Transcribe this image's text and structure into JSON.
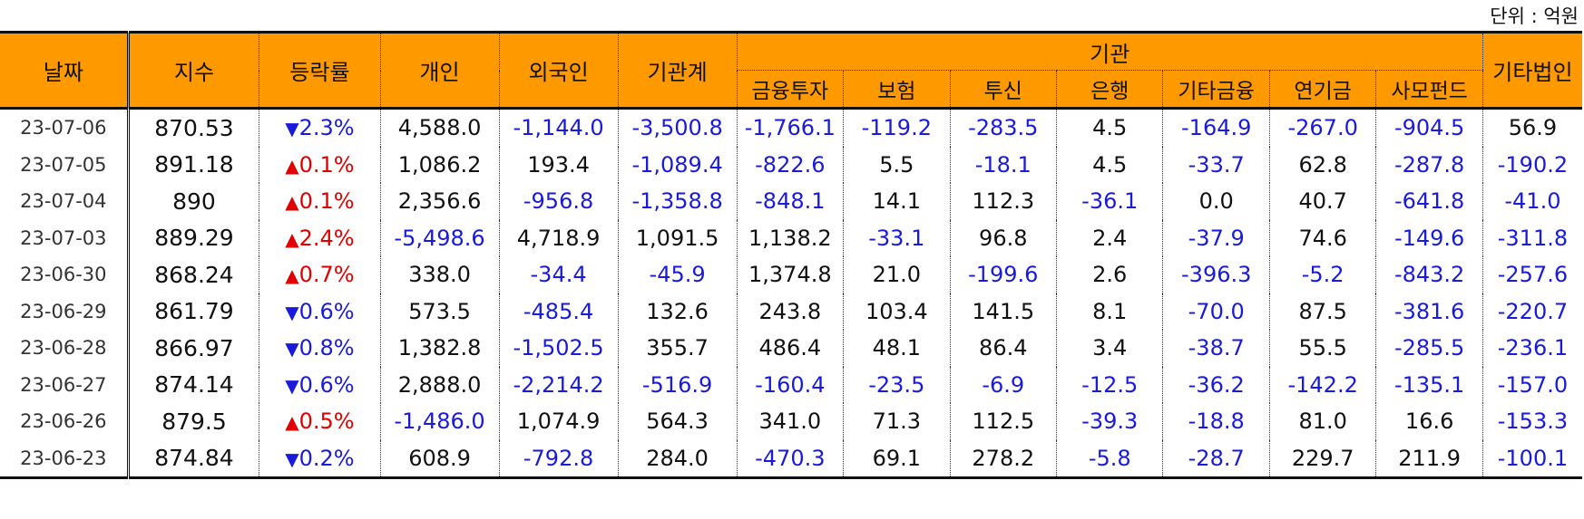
{
  "unit_label": "단위 : 억원",
  "headers": {
    "date": "날짜",
    "index": "지수",
    "change": "등락률",
    "individual": "개인",
    "foreign": "외국인",
    "inst_total": "기관계",
    "institution": "기관",
    "financial_invest": "금융투자",
    "insurance": "보험",
    "trust": "투신",
    "bank": "은행",
    "other_finance": "기타금융",
    "pension": "연기금",
    "private_fund": "사모펀드",
    "other_corp": "기타법인"
  },
  "colors": {
    "header_bg": "#ff9900",
    "negative": "#1a1adb",
    "up": "#e00000",
    "down": "#1a1adb"
  },
  "rows": [
    {
      "date": "23-07-06",
      "index": "870.53",
      "dir": "down",
      "chg": "2.3%",
      "cells": [
        "4,588.0",
        "-1,144.0",
        "-3,500.8",
        "-1,766.1",
        "-119.2",
        "-283.5",
        "4.5",
        "-164.9",
        "-267.0",
        "-904.5",
        "56.9"
      ]
    },
    {
      "date": "23-07-05",
      "index": "891.18",
      "dir": "up",
      "chg": "0.1%",
      "cells": [
        "1,086.2",
        "193.4",
        "-1,089.4",
        "-822.6",
        "5.5",
        "-18.1",
        "4.5",
        "-33.7",
        "62.8",
        "-287.8",
        "-190.2"
      ]
    },
    {
      "date": "23-07-04",
      "index": "890",
      "dir": "up",
      "chg": "0.1%",
      "cells": [
        "2,356.6",
        "-956.8",
        "-1,358.8",
        "-848.1",
        "14.1",
        "112.3",
        "-36.1",
        "0.0",
        "40.7",
        "-641.8",
        "-41.0"
      ]
    },
    {
      "date": "23-07-03",
      "index": "889.29",
      "dir": "up",
      "chg": "2.4%",
      "cells": [
        "-5,498.6",
        "4,718.9",
        "1,091.5",
        "1,138.2",
        "-33.1",
        "96.8",
        "2.4",
        "-37.9",
        "74.6",
        "-149.6",
        "-311.8"
      ]
    },
    {
      "date": "23-06-30",
      "index": "868.24",
      "dir": "up",
      "chg": "0.7%",
      "cells": [
        "338.0",
        "-34.4",
        "-45.9",
        "1,374.8",
        "21.0",
        "-199.6",
        "2.6",
        "-396.3",
        "-5.2",
        "-843.2",
        "-257.6"
      ]
    },
    {
      "date": "23-06-29",
      "index": "861.79",
      "dir": "down",
      "chg": "0.6%",
      "cells": [
        "573.5",
        "-485.4",
        "132.6",
        "243.8",
        "103.4",
        "141.5",
        "8.1",
        "-70.0",
        "87.5",
        "-381.6",
        "-220.7"
      ]
    },
    {
      "date": "23-06-28",
      "index": "866.97",
      "dir": "down",
      "chg": "0.8%",
      "cells": [
        "1,382.8",
        "-1,502.5",
        "355.7",
        "486.4",
        "48.1",
        "86.4",
        "3.4",
        "-38.7",
        "55.5",
        "-285.5",
        "-236.1"
      ]
    },
    {
      "date": "23-06-27",
      "index": "874.14",
      "dir": "down",
      "chg": "0.6%",
      "cells": [
        "2,888.0",
        "-2,214.2",
        "-516.9",
        "-160.4",
        "-23.5",
        "-6.9",
        "-12.5",
        "-36.2",
        "-142.2",
        "-135.1",
        "-157.0"
      ]
    },
    {
      "date": "23-06-26",
      "index": "879.5",
      "dir": "up",
      "chg": "0.5%",
      "cells": [
        "-1,486.0",
        "1,074.9",
        "564.3",
        "341.0",
        "71.3",
        "112.5",
        "-39.3",
        "-18.8",
        "81.0",
        "16.6",
        "-153.3"
      ]
    },
    {
      "date": "23-06-23",
      "index": "874.84",
      "dir": "down",
      "chg": "0.2%",
      "cells": [
        "608.9",
        "-792.8",
        "284.0",
        "-470.3",
        "69.1",
        "278.2",
        "-5.8",
        "-28.7",
        "229.7",
        "211.9",
        "-100.1"
      ]
    }
  ]
}
